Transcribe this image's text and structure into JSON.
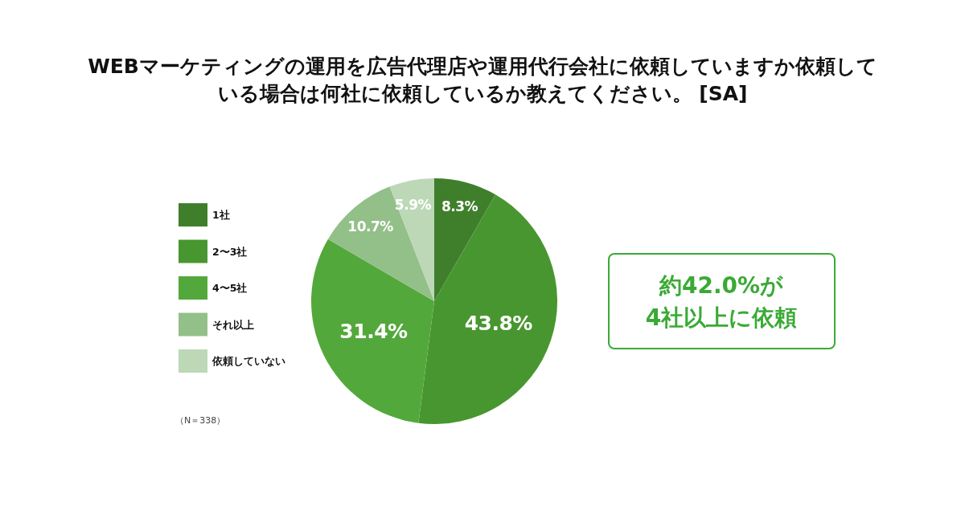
{
  "chart_data": {
    "type": "pie",
    "title": "WEBマーケティングの運用を広告代理店や運用代行会社に依頼していますか依頼している場合は何社に依頼しているか教えてください。 [SA]",
    "categories": [
      "1社",
      "2〜3社",
      "4〜5社",
      "それ以上",
      "依頼していない"
    ],
    "values": [
      8.3,
      43.8,
      31.4,
      10.7,
      5.9
    ],
    "colors": [
      "#3f7f2c",
      "#48962f",
      "#53a83b",
      "#93bf89",
      "#bcd8b7"
    ],
    "value_labels": [
      "8.3%",
      "43.8%",
      "31.4%",
      "10.7%",
      "5.9%"
    ],
    "legend": "left",
    "annotations": [
      "（N＝338）",
      "約42.0%が\n4社以上に依頼"
    ]
  }
}
